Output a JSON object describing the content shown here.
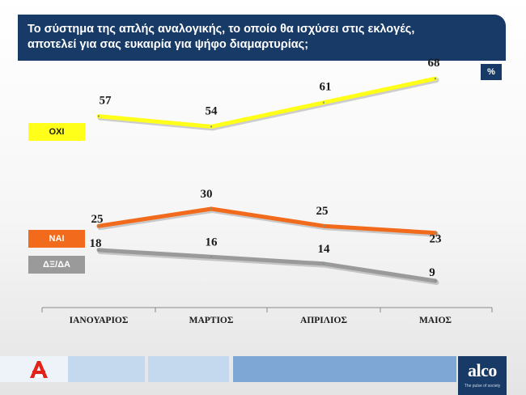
{
  "header": {
    "line1": "Το σύστημα της απλής αναλογικής, το οποίο θα ισχύσει στις εκλογές,",
    "line2": "αποτελεί για σας ευκαιρία για ψήφο διαμαρτυρίας;"
  },
  "unit_label": "%",
  "chart_data": {
    "type": "line",
    "title": "Το σύστημα της απλής αναλογικής, το οποίο θα ισχύσει στις εκλογές, αποτελεί για σας ευκαιρία για ψήφο διαμαρτυρίας;",
    "categories": [
      "ΙΑΝΟΥΑΡΙΟΣ",
      "ΜΑΡΤΙΟΣ",
      "ΑΠΡΙΛΙΟΣ",
      "ΜΑΙΟΣ"
    ],
    "unit": "%",
    "series": [
      {
        "name": "ΟΧΙ",
        "values": [
          57,
          54,
          61,
          68
        ],
        "color": "#ffff1a"
      },
      {
        "name": "ΝΑΙ",
        "values": [
          25,
          30,
          25,
          23
        ],
        "color": "#f26b1d"
      },
      {
        "name": "ΔΞ/ΔΑ",
        "values": [
          18,
          16,
          14,
          9
        ],
        "color": "#9a9a9a"
      }
    ],
    "legend_placement": "left",
    "grid": false
  },
  "footer": {
    "brand": "alco",
    "tagline": "The pulse of society",
    "colors": {
      "navy": "#183a66",
      "light_blue": "#c5d9ee",
      "mid_blue": "#7ea7d6",
      "alpha_red": "#e2231a"
    }
  }
}
